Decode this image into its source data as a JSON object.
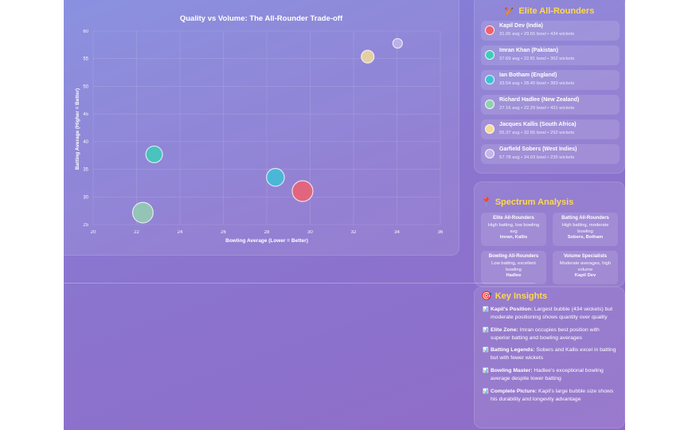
{
  "chart_data": {
    "type": "scatter",
    "title": "Quality vs Volume: The All-Rounder Trade-off",
    "xlabel": "Bowling Average (Lower = Better)",
    "ylabel": "Batting Average (Higher = Better)",
    "xlim": [
      20,
      36
    ],
    "ylim": [
      25,
      60
    ],
    "x_ticks": [
      20,
      22,
      24,
      26,
      28,
      30,
      32,
      34,
      36
    ],
    "y_ticks": [
      25,
      30,
      35,
      40,
      45,
      50,
      55,
      60
    ],
    "grid": true,
    "size_encodes": "wickets",
    "points": [
      {
        "x": 29.65,
        "y": 31.05,
        "size": 434,
        "color": "#f0606e"
      },
      {
        "x": 22.81,
        "y": 37.69,
        "size": 362,
        "color": "#3ecdb9"
      },
      {
        "x": 28.4,
        "y": 33.54,
        "size": 383,
        "color": "#3ec1d8"
      },
      {
        "x": 22.29,
        "y": 27.16,
        "size": 431,
        "color": "#93d0b0"
      },
      {
        "x": 32.65,
        "y": 55.37,
        "size": 292,
        "color": "#f3dc9a"
      },
      {
        "x": 34.03,
        "y": 57.78,
        "size": 235,
        "color": "#c3b8ea"
      }
    ]
  },
  "elite": {
    "title": "Elite All-Rounders",
    "icon": "trophy-icon",
    "players": [
      {
        "name": "Kapil Dev (India)",
        "stats": "31.05 avg • 29.65 bowl • 434 wickets",
        "color": "#f0606e"
      },
      {
        "name": "Imran Khan (Pakistan)",
        "stats": "37.69 avg • 22.81 bowl • 362 wickets",
        "color": "#3ecdb9"
      },
      {
        "name": "Ian Botham (England)",
        "stats": "33.54 avg • 28.40 bowl • 383 wickets",
        "color": "#3ec1d8"
      },
      {
        "name": "Richard Hadlee (New Zealand)",
        "stats": "27.16 avg • 22.29 bowl • 431 wickets",
        "color": "#93d0b0"
      },
      {
        "name": "Jacques Kallis (South Africa)",
        "stats": "55.37 avg • 32.65 bowl • 292 wickets",
        "color": "#f3dc9a"
      },
      {
        "name": "Garfield Sobers (West Indies)",
        "stats": "57.78 avg • 34.03 bowl • 235 wickets",
        "color": "#c3b8ea"
      }
    ]
  },
  "spectrum": {
    "title": "Spectrum Analysis",
    "icon": "pin-icon",
    "quadrants": [
      {
        "title": "Elite All-Rounders",
        "desc": "High batting, low bowling avg",
        "players": "Imran, Kallis"
      },
      {
        "title": "Batting All-Rounders",
        "desc": "High batting, moderate bowling",
        "players": "Sobers, Botham"
      },
      {
        "title": "Bowling All-Rounders",
        "desc": "Low batting, excellent bowling",
        "players": "Hadlee"
      },
      {
        "title": "Volume Specialists",
        "desc": "Moderate averages, high volume",
        "players": "Kapil Dev"
      }
    ]
  },
  "insights": {
    "title": "Key Insights",
    "icon": "target-icon",
    "items": [
      {
        "label": "Kapil's Position:",
        "text": " Largest bubble (434 wickets) but moderate positioning shows quantity over quality"
      },
      {
        "label": "Elite Zone:",
        "text": " Imran occupies best position with superior batting and bowling averages"
      },
      {
        "label": "Batting Legends:",
        "text": " Sobers and Kallis excel in batting but with fewer wickets"
      },
      {
        "label": "Bowling Master:",
        "text": " Hadlee's exceptional bowling average despite lower batting"
      },
      {
        "label": "Complete Picture:",
        "text": " Kapil's large bubble size shows his durability and longevity advantage"
      }
    ]
  }
}
